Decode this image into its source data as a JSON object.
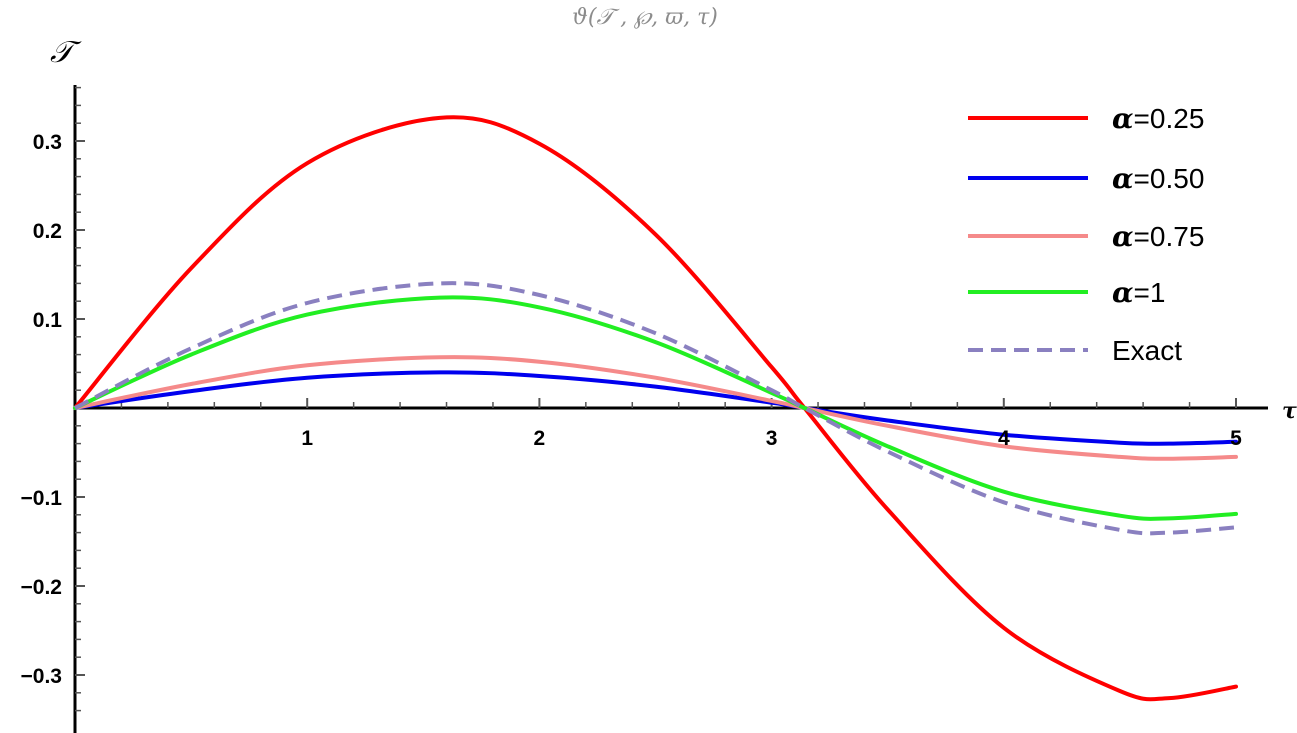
{
  "chart_data": {
    "type": "line",
    "title": "ϑ(𝒯 , ℘, ϖ, τ)",
    "xlabel": "τ",
    "ylabel": "𝒯",
    "xlim": [
      0,
      5
    ],
    "ylim": [
      -0.35,
      0.36
    ],
    "x_ticks": [
      "1",
      "2",
      "3",
      "4",
      "5"
    ],
    "y_ticks": [
      "0.3",
      "0.2",
      "0.1",
      "−0.1",
      "−0.2",
      "−0.3"
    ],
    "legend_position": "top-right",
    "series": [
      {
        "name": "α=0.25",
        "color": "#ff0000",
        "style": "solid",
        "x": [
          0,
          0.5,
          1.0,
          1.5708,
          2.0,
          2.5,
          3.0,
          3.1416,
          3.5,
          4.0,
          4.5,
          4.7124,
          5.0
        ],
        "y": [
          0,
          0.157,
          0.275,
          0.326,
          0.297,
          0.195,
          0.046,
          0,
          -0.114,
          -0.247,
          -0.318,
          -0.326,
          -0.313
        ]
      },
      {
        "name": "α=0.50",
        "color": "#0000ee",
        "style": "solid",
        "x": [
          0,
          0.5,
          1.0,
          1.5708,
          2.0,
          2.5,
          3.0,
          3.1416,
          3.5,
          4.0,
          4.5,
          4.7124,
          5.0
        ],
        "y": [
          0,
          0.019,
          0.034,
          0.04,
          0.036,
          0.024,
          0.006,
          0,
          -0.014,
          -0.03,
          -0.039,
          -0.04,
          -0.038
        ]
      },
      {
        "name": "α=0.75",
        "color": "#f58a8a",
        "style": "solid",
        "x": [
          0,
          0.5,
          1.0,
          1.5708,
          2.0,
          2.5,
          3.0,
          3.1416,
          3.5,
          4.0,
          4.5,
          4.7124,
          5.0
        ],
        "y": [
          0,
          0.027,
          0.048,
          0.057,
          0.052,
          0.034,
          0.008,
          0,
          -0.02,
          -0.043,
          -0.055,
          -0.057,
          -0.055
        ]
      },
      {
        "name": "α=1",
        "color": "#22ee22",
        "style": "solid",
        "x": [
          0,
          0.5,
          1.0,
          1.5708,
          2.0,
          2.5,
          3.0,
          3.1416,
          3.5,
          4.0,
          4.5,
          4.7124,
          5.0
        ],
        "y": [
          0,
          0.06,
          0.105,
          0.124,
          0.113,
          0.074,
          0.017,
          0,
          -0.043,
          -0.094,
          -0.121,
          -0.124,
          -0.119
        ]
      },
      {
        "name": "Exact",
        "color": "#8a80c0",
        "style": "dashed",
        "x": [
          0,
          0.5,
          1.0,
          1.5708,
          2.0,
          2.5,
          3.0,
          3.1416,
          3.5,
          4.0,
          4.5,
          4.7124,
          5.0
        ],
        "y": [
          0,
          0.067,
          0.118,
          0.14,
          0.127,
          0.084,
          0.02,
          0,
          -0.049,
          -0.106,
          -0.137,
          -0.14,
          -0.134
        ]
      }
    ]
  }
}
